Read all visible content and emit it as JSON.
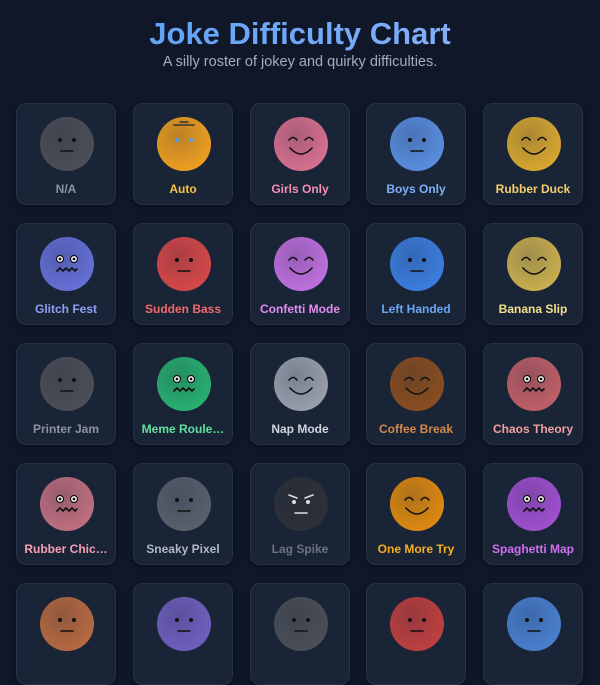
{
  "header": {
    "title": "Joke Difficulty Chart",
    "subtitle": "A silly roster of jokey and quirky difficulties."
  },
  "cards": [
    {
      "label": "N/A"
    },
    {
      "label": "Auto"
    },
    {
      "label": "Girls Only"
    },
    {
      "label": "Boys Only"
    },
    {
      "label": "Rubber Duck"
    },
    {
      "label": "Glitch Fest"
    },
    {
      "label": "Sudden Bass"
    },
    {
      "label": "Confetti Mode"
    },
    {
      "label": "Left Handed"
    },
    {
      "label": "Banana Slip"
    },
    {
      "label": "Printer Jam"
    },
    {
      "label": "Meme Roule…"
    },
    {
      "label": "Nap Mode"
    },
    {
      "label": "Coffee Break"
    },
    {
      "label": "Chaos Theory"
    },
    {
      "label": "Rubber Chic…"
    },
    {
      "label": "Sneaky Pixel"
    },
    {
      "label": "Lag Spike"
    },
    {
      "label": "One More Try"
    },
    {
      "label": "Spaghetti Map"
    }
  ]
}
